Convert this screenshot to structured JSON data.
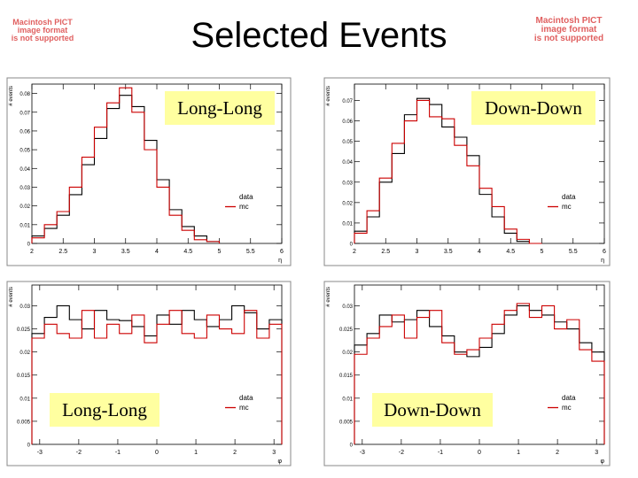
{
  "slide_title": "Selected Events",
  "pict_notice": [
    "Macintosh PICT",
    "image format",
    "is not supported"
  ],
  "colors": {
    "data": "#000000",
    "mc": "#cc0000",
    "label_bg": "#ffffa0",
    "frame": "#888888"
  },
  "chart_data": [
    {
      "type": "line",
      "drawstyle": "steps",
      "panel_label": "Long-Long",
      "ylabel": "# events",
      "xlabel": "η",
      "xlim": [
        2,
        6
      ],
      "ylim": [
        0,
        0.085
      ],
      "xticks": [
        "2",
        "2.5",
        "3",
        "3.5",
        "4",
        "4.5",
        "5",
        "5.5",
        "6"
      ],
      "yticks": [
        "0",
        "0.01",
        "0.02",
        "0.03",
        "0.04",
        "0.05",
        "0.06",
        "0.07",
        "0.08"
      ],
      "bin_edges": [
        2.0,
        2.2,
        2.4,
        2.6,
        2.8,
        3.0,
        3.2,
        3.4,
        3.6,
        3.8,
        4.0,
        4.2,
        4.4,
        4.6,
        4.8,
        5.0
      ],
      "legend": [
        "data",
        "mc"
      ],
      "series": [
        {
          "name": "data",
          "values": [
            0.004,
            0.008,
            0.015,
            0.026,
            0.042,
            0.056,
            0.072,
            0.079,
            0.073,
            0.055,
            0.034,
            0.018,
            0.009,
            0.004,
            0.001
          ]
        },
        {
          "name": "mc",
          "values": [
            0.003,
            0.01,
            0.017,
            0.03,
            0.046,
            0.062,
            0.075,
            0.083,
            0.07,
            0.05,
            0.03,
            0.015,
            0.007,
            0.002,
            0.001
          ]
        }
      ]
    },
    {
      "type": "line",
      "drawstyle": "steps",
      "panel_label": "Down-Down",
      "ylabel": "# events",
      "xlabel": "η",
      "xlim": [
        2,
        6
      ],
      "ylim": [
        0,
        0.078
      ],
      "xticks": [
        "2",
        "2.5",
        "3",
        "3.5",
        "4",
        "4.5",
        "5",
        "5.5",
        "6"
      ],
      "yticks": [
        "0",
        "0.01",
        "0.02",
        "0.03",
        "0.04",
        "0.05",
        "0.06",
        "0.07"
      ],
      "bin_edges": [
        2.0,
        2.2,
        2.4,
        2.6,
        2.8,
        3.0,
        3.2,
        3.4,
        3.6,
        3.8,
        4.0,
        4.2,
        4.4,
        4.6,
        4.8,
        5.0
      ],
      "legend": [
        "data",
        "mc"
      ],
      "series": [
        {
          "name": "data",
          "values": [
            0.006,
            0.013,
            0.03,
            0.044,
            0.063,
            0.071,
            0.068,
            0.057,
            0.052,
            0.043,
            0.024,
            0.013,
            0.005,
            0.001,
            0.0
          ]
        },
        {
          "name": "mc",
          "values": [
            0.005,
            0.016,
            0.032,
            0.049,
            0.06,
            0.07,
            0.062,
            0.061,
            0.048,
            0.038,
            0.027,
            0.018,
            0.007,
            0.002,
            0.0
          ]
        }
      ]
    },
    {
      "type": "line",
      "drawstyle": "steps",
      "panel_label": "Long-Long",
      "ylabel": "# events",
      "xlabel": "φ",
      "xlim": [
        -3.2,
        3.2
      ],
      "ylim": [
        0,
        0.0345
      ],
      "xticks": [
        "-3",
        "-2",
        "-1",
        "0",
        "1",
        "2",
        "3"
      ],
      "yticks": [
        "0",
        "0.005",
        "0.01",
        "0.015",
        "0.02",
        "0.025",
        "0.03"
      ],
      "bin_edges": [
        -3.2,
        -2.88,
        -2.56,
        -2.24,
        -1.92,
        -1.6,
        -1.28,
        -0.96,
        -0.64,
        -0.32,
        0.0,
        0.32,
        0.64,
        0.96,
        1.28,
        1.6,
        1.92,
        2.24,
        2.56,
        2.88,
        3.2
      ],
      "legend": [
        "data",
        "mc"
      ],
      "series": [
        {
          "name": "data",
          "values": [
            0.024,
            0.0275,
            0.03,
            0.027,
            0.025,
            0.029,
            0.027,
            0.0268,
            0.0255,
            0.0235,
            0.028,
            0.026,
            0.029,
            0.027,
            0.0255,
            0.027,
            0.03,
            0.0285,
            0.025,
            0.027
          ]
        },
        {
          "name": "mc",
          "values": [
            0.023,
            0.026,
            0.024,
            0.023,
            0.029,
            0.023,
            0.026,
            0.024,
            0.028,
            0.022,
            0.026,
            0.029,
            0.024,
            0.023,
            0.028,
            0.025,
            0.024,
            0.029,
            0.023,
            0.026
          ]
        }
      ]
    },
    {
      "type": "line",
      "drawstyle": "steps",
      "panel_label": "Down-Down",
      "ylabel": "# events",
      "xlabel": "φ",
      "xlim": [
        -3.2,
        3.2
      ],
      "ylim": [
        0,
        0.0345
      ],
      "xticks": [
        "-3",
        "-2",
        "-1",
        "0",
        "1",
        "2",
        "3"
      ],
      "yticks": [
        "0",
        "0.005",
        "0.01",
        "0.015",
        "0.02",
        "0.025",
        "0.03"
      ],
      "bin_edges": [
        -3.2,
        -2.88,
        -2.56,
        -2.24,
        -1.92,
        -1.6,
        -1.28,
        -0.96,
        -0.64,
        -0.32,
        0.0,
        0.32,
        0.64,
        0.96,
        1.28,
        1.6,
        1.92,
        2.24,
        2.56,
        2.88,
        3.2
      ],
      "legend": [
        "data",
        "mc"
      ],
      "series": [
        {
          "name": "data",
          "values": [
            0.0215,
            0.024,
            0.028,
            0.0265,
            0.027,
            0.029,
            0.0255,
            0.0235,
            0.02,
            0.019,
            0.021,
            0.024,
            0.028,
            0.03,
            0.029,
            0.028,
            0.0265,
            0.025,
            0.022,
            0.02
          ]
        },
        {
          "name": "mc",
          "values": [
            0.0195,
            0.023,
            0.0255,
            0.028,
            0.023,
            0.0275,
            0.029,
            0.022,
            0.0195,
            0.0205,
            0.023,
            0.026,
            0.029,
            0.0305,
            0.0275,
            0.03,
            0.025,
            0.027,
            0.0205,
            0.018
          ]
        }
      ]
    }
  ]
}
